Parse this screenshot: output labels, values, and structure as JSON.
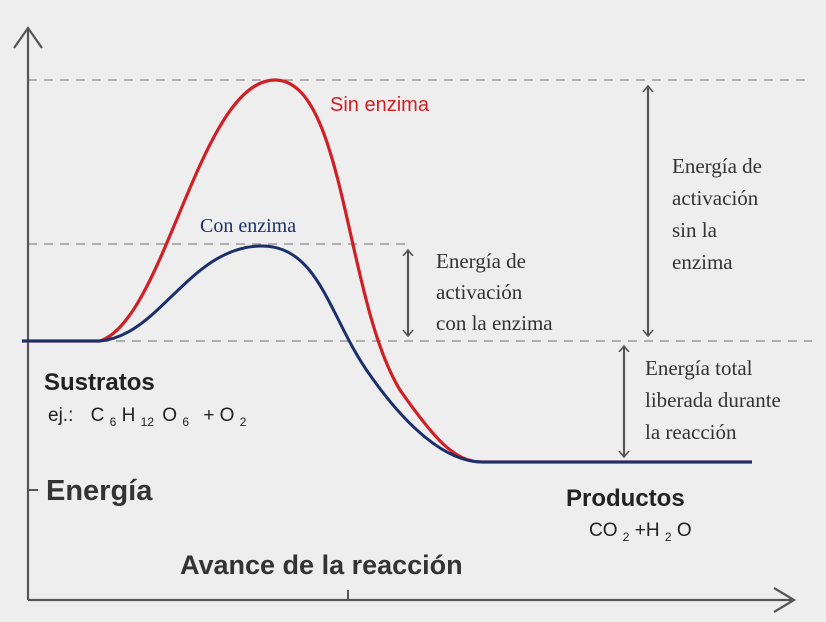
{
  "colors": {
    "background": "#eeeeee",
    "axis": "#555555",
    "dashed_guide": "#9a9a9a",
    "arrow": "#555555",
    "curve_without_enzyme": "#d11f26",
    "curve_with_enzyme": "#1b2f6b",
    "text_dark": "#222222",
    "text_body": "#333333"
  },
  "curves": {
    "without_enzyme": {
      "label": "Sin enzima"
    },
    "with_enzyme": {
      "label": "Con enzima"
    }
  },
  "axes": {
    "y_label": "Energía",
    "x_label": "Avance de la reacción"
  },
  "substrates": {
    "title": "Sustratos",
    "example_prefix": "ej.:",
    "formula": {
      "c": "C",
      "c_sub": "6",
      "h": "H",
      "h_sub": "12",
      "o": "O",
      "o_sub": "6",
      "plus_o": "+ O",
      "o2_sub": "2"
    }
  },
  "products": {
    "title": "Productos",
    "formula": {
      "co": "CO",
      "co_sub": "2",
      "plus_h": "+H",
      "h_sub": "2",
      "o": "O"
    }
  },
  "annotations": {
    "activation_with_enzyme": [
      "Energía de",
      "activación",
      "con la enzima"
    ],
    "activation_without_enzyme": [
      "Energía de",
      "activación",
      "sin la",
      "enzima"
    ],
    "total_energy_released": [
      "Energía total",
      "liberada durante",
      "la reacción"
    ]
  }
}
